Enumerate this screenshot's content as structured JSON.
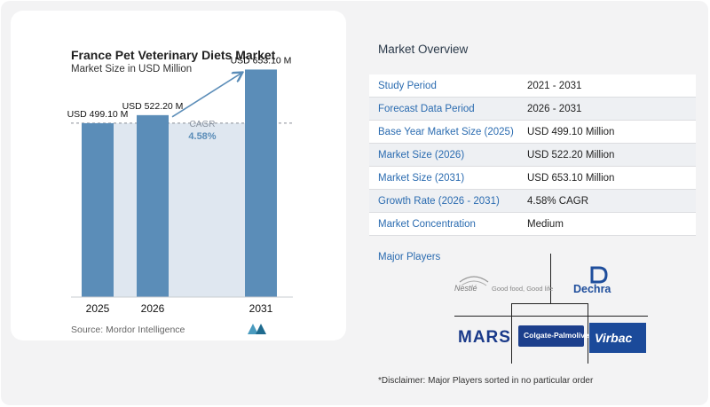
{
  "chart_data": {
    "type": "bar",
    "title": "France Pet Veterinary Diets Market",
    "subtitle": "Market Size in USD Million",
    "categories": [
      "2025",
      "2026",
      "2031"
    ],
    "values": [
      499.1,
      522.2,
      653.1
    ],
    "value_labels": [
      "USD 499.10 M",
      "USD 522.20 M",
      "USD 653.10 M"
    ],
    "ylim": [
      0,
      700
    ],
    "cagr_label": "CAGR",
    "cagr_value": "4.58%",
    "bar_color": "#5b8db8",
    "shade_color": "#dfe7f0",
    "source": "Source:  Mordor Intelligence"
  },
  "overview": {
    "title": "Market Overview",
    "rows": [
      {
        "key": "Study Period",
        "value": "2021 - 2031"
      },
      {
        "key": "Forecast Data Period",
        "value": "2026 - 2031"
      },
      {
        "key": "Base Year Market Size (2025)",
        "value": "USD 499.10 Million"
      },
      {
        "key": "Market Size (2026)",
        "value": "USD 522.20 Million"
      },
      {
        "key": "Market Size (2031)",
        "value": "USD 653.10 Million"
      },
      {
        "key": "Growth Rate (2026 - 2031)",
        "value": "4.58% CAGR"
      },
      {
        "key": "Market Concentration",
        "value": "Medium"
      }
    ]
  },
  "players": {
    "title": "Major Players",
    "nestle_mark": "Nestlé",
    "nestle_tag": "Good food, Good life",
    "dechra": "Dechra",
    "mars": "MARS",
    "colgate": "Colgate-Palmolive",
    "virbac": "Virbac"
  },
  "disclaimer": "*Disclaimer: Major Players sorted in no particular order",
  "colors": {
    "key_text": "#2a6bb0",
    "row_alt": "#eef0f3",
    "arrow": "#5b8db8"
  }
}
